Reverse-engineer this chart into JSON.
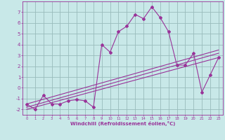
{
  "xlabel": "Windchill (Refroidissement éolien,°C)",
  "bg_color": "#c8e8e8",
  "line_color": "#993399",
  "grid_color": "#99bbbb",
  "x_main": [
    0,
    1,
    2,
    3,
    4,
    5,
    6,
    7,
    8,
    9,
    10,
    11,
    12,
    13,
    14,
    15,
    16,
    17,
    18,
    19,
    20,
    21,
    22,
    23
  ],
  "y_main": [
    -1.5,
    -2.0,
    -0.7,
    -1.5,
    -1.5,
    -1.2,
    -1.1,
    -1.2,
    -1.8,
    4.0,
    3.3,
    5.2,
    5.7,
    6.8,
    6.4,
    7.5,
    6.5,
    5.2,
    2.1,
    2.1,
    3.2,
    -0.4,
    1.2,
    2.8
  ],
  "line1_x": [
    0,
    23
  ],
  "line1_y": [
    -2.0,
    2.8
  ],
  "line2_x": [
    0,
    23
  ],
  "line2_y": [
    -1.8,
    3.2
  ],
  "line3_x": [
    0,
    23
  ],
  "line3_y": [
    -1.5,
    3.5
  ],
  "ylim": [
    -2.5,
    8.0
  ],
  "xlim": [
    -0.5,
    23.5
  ],
  "yticks": [
    -2,
    -1,
    0,
    1,
    2,
    3,
    4,
    5,
    6,
    7
  ],
  "xticks": [
    0,
    1,
    2,
    3,
    4,
    5,
    6,
    7,
    8,
    9,
    10,
    11,
    12,
    13,
    14,
    15,
    16,
    17,
    18,
    19,
    20,
    21,
    22,
    23
  ]
}
